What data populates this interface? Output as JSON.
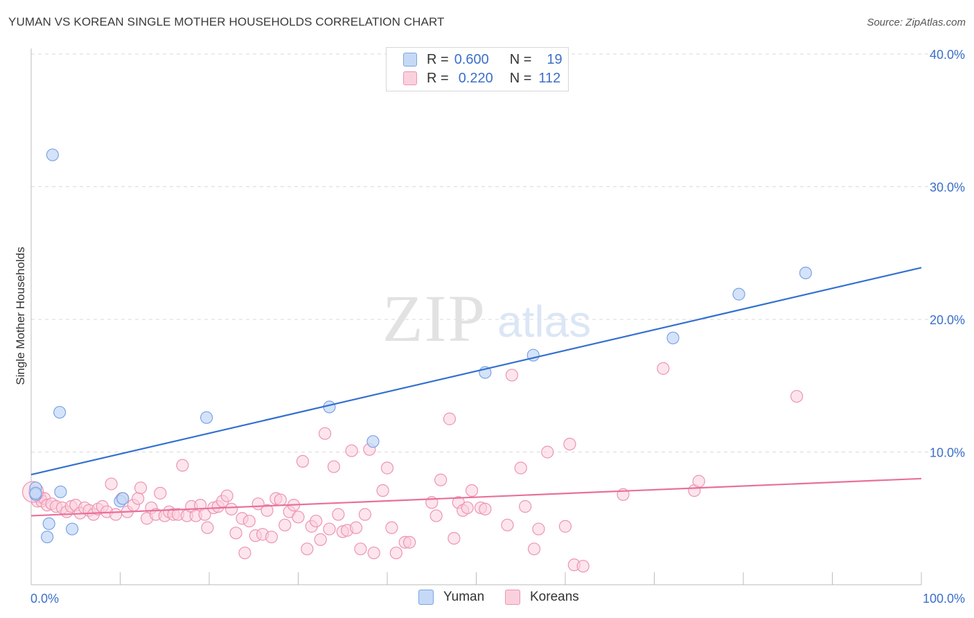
{
  "header": {
    "title": "YUMAN VS KOREAN SINGLE MOTHER HOUSEHOLDS CORRELATION CHART",
    "source": "Source: ZipAtlas.com"
  },
  "watermark": {
    "zip": "ZIP",
    "atlas": "atlas"
  },
  "legend_top": [
    {
      "r_label": "R =",
      "r_value": "0.600",
      "n_label": "N =",
      "n_value": "19"
    },
    {
      "r_label": "R =",
      "r_value": "0.220",
      "n_label": "N =",
      "n_value": "112"
    }
  ],
  "colors": {
    "yuman_fill": "#c5d9f7",
    "yuman_stroke": "#7ba3e3",
    "yuman_line": "#3370d0",
    "korean_fill": "#fbd0dd",
    "korean_stroke": "#ec94b2",
    "korean_line": "#e8709a",
    "tick_label": "#3b6fc9",
    "grid": "#d9d9d9"
  },
  "chart_data": {
    "type": "scatter",
    "xlabel": "",
    "ylabel": "Single Mother Households",
    "xlim": [
      0,
      100
    ],
    "ylim": [
      0,
      41
    ],
    "x_tick_labels": [
      "0.0%",
      "100.0%"
    ],
    "y_ticks": [
      10,
      20,
      30,
      40
    ],
    "y_tick_labels": [
      "10.0%",
      "20.0%",
      "30.0%",
      "40.0%"
    ],
    "grid": "horizontal dashed",
    "legend_position": "top-center",
    "series": [
      {
        "name": "Yuman",
        "points": [
          [
            0.5,
            7.3
          ],
          [
            0.5,
            6.8
          ],
          [
            1.8,
            3.6
          ],
          [
            2.0,
            4.6
          ],
          [
            2.4,
            32.4
          ],
          [
            3.2,
            13.0
          ],
          [
            3.3,
            7.0
          ],
          [
            4.6,
            4.2
          ],
          [
            10.0,
            6.3
          ],
          [
            10.3,
            6.5
          ],
          [
            19.7,
            12.6
          ],
          [
            33.5,
            13.4
          ],
          [
            38.4,
            10.8
          ],
          [
            51.0,
            16.0
          ],
          [
            56.4,
            17.3
          ],
          [
            72.1,
            18.6
          ],
          [
            79.5,
            21.9
          ],
          [
            87.0,
            23.5
          ],
          [
            0.5,
            6.9
          ]
        ],
        "trend": [
          [
            0,
            8.3
          ],
          [
            100,
            23.9
          ]
        ]
      },
      {
        "name": "Koreans",
        "points": [
          [
            0.4,
            7.0
          ],
          [
            0.7,
            6.3
          ],
          [
            1.0,
            6.6
          ],
          [
            1.2,
            6.3
          ],
          [
            1.5,
            6.5
          ],
          [
            1.8,
            6.0
          ],
          [
            2.3,
            6.1
          ],
          [
            2.8,
            5.9
          ],
          [
            3.5,
            5.8
          ],
          [
            4.0,
            5.5
          ],
          [
            4.5,
            5.9
          ],
          [
            5.0,
            6.0
          ],
          [
            5.5,
            5.4
          ],
          [
            6.0,
            5.8
          ],
          [
            6.5,
            5.6
          ],
          [
            7.0,
            5.3
          ],
          [
            7.5,
            5.7
          ],
          [
            8.0,
            5.9
          ],
          [
            8.5,
            5.5
          ],
          [
            9.0,
            7.6
          ],
          [
            9.5,
            5.3
          ],
          [
            10.2,
            6.5
          ],
          [
            10.8,
            5.5
          ],
          [
            11.5,
            6.0
          ],
          [
            12.0,
            6.5
          ],
          [
            12.3,
            7.3
          ],
          [
            13.0,
            5.0
          ],
          [
            13.5,
            5.8
          ],
          [
            14.0,
            5.3
          ],
          [
            14.5,
            6.9
          ],
          [
            15.0,
            5.2
          ],
          [
            15.5,
            5.5
          ],
          [
            16.0,
            5.3
          ],
          [
            16.5,
            5.3
          ],
          [
            17.0,
            9.0
          ],
          [
            17.5,
            5.2
          ],
          [
            18.0,
            5.9
          ],
          [
            18.5,
            5.2
          ],
          [
            19.0,
            6.0
          ],
          [
            19.5,
            5.3
          ],
          [
            19.8,
            4.3
          ],
          [
            20.5,
            5.8
          ],
          [
            21.0,
            5.9
          ],
          [
            21.5,
            6.3
          ],
          [
            22.0,
            6.7
          ],
          [
            22.5,
            5.7
          ],
          [
            23.0,
            3.9
          ],
          [
            23.7,
            5.0
          ],
          [
            24.0,
            2.4
          ],
          [
            24.5,
            4.8
          ],
          [
            25.2,
            3.7
          ],
          [
            25.5,
            6.1
          ],
          [
            26.0,
            3.8
          ],
          [
            26.5,
            5.6
          ],
          [
            27.0,
            3.6
          ],
          [
            27.5,
            6.5
          ],
          [
            28.0,
            6.4
          ],
          [
            28.5,
            4.5
          ],
          [
            29.0,
            5.5
          ],
          [
            29.5,
            6.0
          ],
          [
            30.0,
            5.1
          ],
          [
            30.5,
            9.3
          ],
          [
            31.0,
            2.7
          ],
          [
            31.5,
            4.4
          ],
          [
            32.0,
            4.8
          ],
          [
            32.5,
            3.4
          ],
          [
            33.0,
            11.4
          ],
          [
            33.5,
            4.2
          ],
          [
            34.0,
            8.9
          ],
          [
            34.5,
            5.3
          ],
          [
            35.0,
            4.0
          ],
          [
            35.5,
            4.1
          ],
          [
            36.0,
            10.1
          ],
          [
            36.5,
            4.3
          ],
          [
            37.0,
            2.7
          ],
          [
            37.5,
            5.3
          ],
          [
            38.0,
            10.2
          ],
          [
            38.5,
            2.4
          ],
          [
            39.5,
            7.1
          ],
          [
            40.0,
            8.8
          ],
          [
            40.5,
            4.3
          ],
          [
            41.0,
            2.4
          ],
          [
            42.0,
            3.2
          ],
          [
            42.5,
            3.2
          ],
          [
            45.0,
            6.2
          ],
          [
            45.5,
            5.2
          ],
          [
            46.0,
            7.9
          ],
          [
            47.0,
            12.5
          ],
          [
            47.5,
            3.5
          ],
          [
            48.0,
            6.2
          ],
          [
            48.5,
            5.6
          ],
          [
            49.0,
            5.8
          ],
          [
            49.5,
            7.1
          ],
          [
            50.5,
            5.8
          ],
          [
            51.0,
            5.7
          ],
          [
            53.5,
            4.5
          ],
          [
            54.0,
            15.8
          ],
          [
            55.0,
            8.8
          ],
          [
            55.5,
            5.9
          ],
          [
            56.5,
            2.7
          ],
          [
            57.0,
            4.2
          ],
          [
            58.0,
            10.0
          ],
          [
            60.0,
            4.4
          ],
          [
            60.5,
            10.6
          ],
          [
            61.0,
            1.5
          ],
          [
            62.0,
            1.4
          ],
          [
            66.5,
            6.8
          ],
          [
            71.0,
            16.3
          ],
          [
            74.5,
            7.1
          ],
          [
            75.0,
            7.8
          ],
          [
            86.0,
            14.2
          ],
          [
            0.2,
            7.0
          ]
        ],
        "trend": [
          [
            0,
            5.2
          ],
          [
            100,
            8.0
          ]
        ]
      }
    ]
  }
}
